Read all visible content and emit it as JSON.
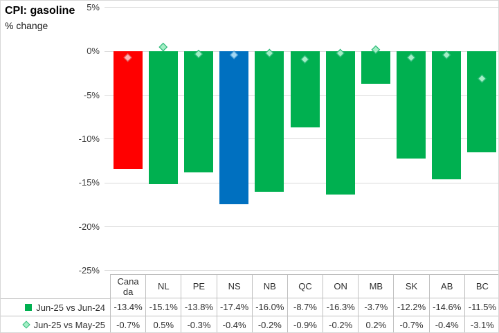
{
  "title": "CPI: gasoline",
  "subtitle": "% change",
  "chart_data": {
    "type": "bar",
    "title": "CPI: gasoline",
    "ylabel": "% change",
    "ylim": [
      -25,
      5
    ],
    "grid": true,
    "legend_position": "data-table-left",
    "categories": [
      "Canada",
      "NL",
      "PE",
      "NS",
      "NB",
      "QC",
      "ON",
      "MB",
      "SK",
      "AB",
      "BC"
    ],
    "category_display_lines": [
      [
        "Cana",
        "da"
      ],
      [
        "NL"
      ],
      [
        "PE"
      ],
      [
        "NS"
      ],
      [
        "NB"
      ],
      [
        "QC"
      ],
      [
        "ON"
      ],
      [
        "MB"
      ],
      [
        "SK"
      ],
      [
        "AB"
      ],
      [
        "BC"
      ]
    ],
    "y_ticks": [
      {
        "v": 5,
        "label": "5%"
      },
      {
        "v": 0,
        "label": "0%"
      },
      {
        "v": -5,
        "label": "-5%"
      },
      {
        "v": -10,
        "label": "-10%"
      },
      {
        "v": -15,
        "label": "-15%"
      },
      {
        "v": -20,
        "label": "-20%"
      },
      {
        "v": -25,
        "label": "-25%"
      }
    ],
    "series": [
      {
        "name": "Jun-25 vs Jun-24",
        "type": "bar",
        "values": [
          -13.4,
          -15.1,
          -13.8,
          -17.4,
          -16.0,
          -8.7,
          -16.3,
          -3.7,
          -12.2,
          -14.6,
          -11.5
        ],
        "labels": [
          "-13.4%",
          "-15.1%",
          "-13.8%",
          "-17.4%",
          "-16.0%",
          "-8.7%",
          "-16.3%",
          "-3.7%",
          "-12.2%",
          "-14.6%",
          "-11.5%"
        ]
      },
      {
        "name": "Jun-25 vs May-25",
        "type": "scatter-diamond",
        "values": [
          -0.7,
          0.5,
          -0.3,
          -0.4,
          -0.2,
          -0.9,
          -0.2,
          0.2,
          -0.7,
          -0.4,
          -3.1
        ],
        "labels": [
          "-0.7%",
          "0.5%",
          "-0.3%",
          "-0.4%",
          "-0.2%",
          "-0.9%",
          "-0.2%",
          "0.2%",
          "-0.7%",
          "-0.4%",
          "-3.1%"
        ]
      }
    ],
    "colors": {
      "bar_fill_default": "#00B050",
      "bar_fill_canada": "#FF0000",
      "bar_fill_ns": "#0070C0",
      "bar_colors": [
        "#FF0000",
        "#00B050",
        "#00B050",
        "#0070C0",
        "#00B050",
        "#00B050",
        "#00B050",
        "#00B050",
        "#00B050",
        "#00B050",
        "#00B050"
      ],
      "marker_fills": [
        "#FFB1B1",
        "#A4EEC5",
        "#A4EEC5",
        "#A3D6F2",
        "#A4EEC5",
        "#A4EEC5",
        "#A4EEC5",
        "#A4EEC5",
        "#A4EEC5",
        "#A4EEC5",
        "#A4EEC5"
      ],
      "marker_strokes": [
        "#E25A5A",
        "#31BC7C",
        "#31BC7C",
        "#4BA0D6",
        "#31BC7C",
        "#31BC7C",
        "#31BC7C",
        "#31BC7C",
        "#31BC7C",
        "#31BC7C",
        "#31BC7C"
      ],
      "legend_square": "#00B050",
      "legend_diamond_fill": "#A4EEC5",
      "legend_diamond_stroke": "#31BC7C",
      "gridline": "#D9D9D9",
      "table_border": "#BFBFBF"
    }
  }
}
